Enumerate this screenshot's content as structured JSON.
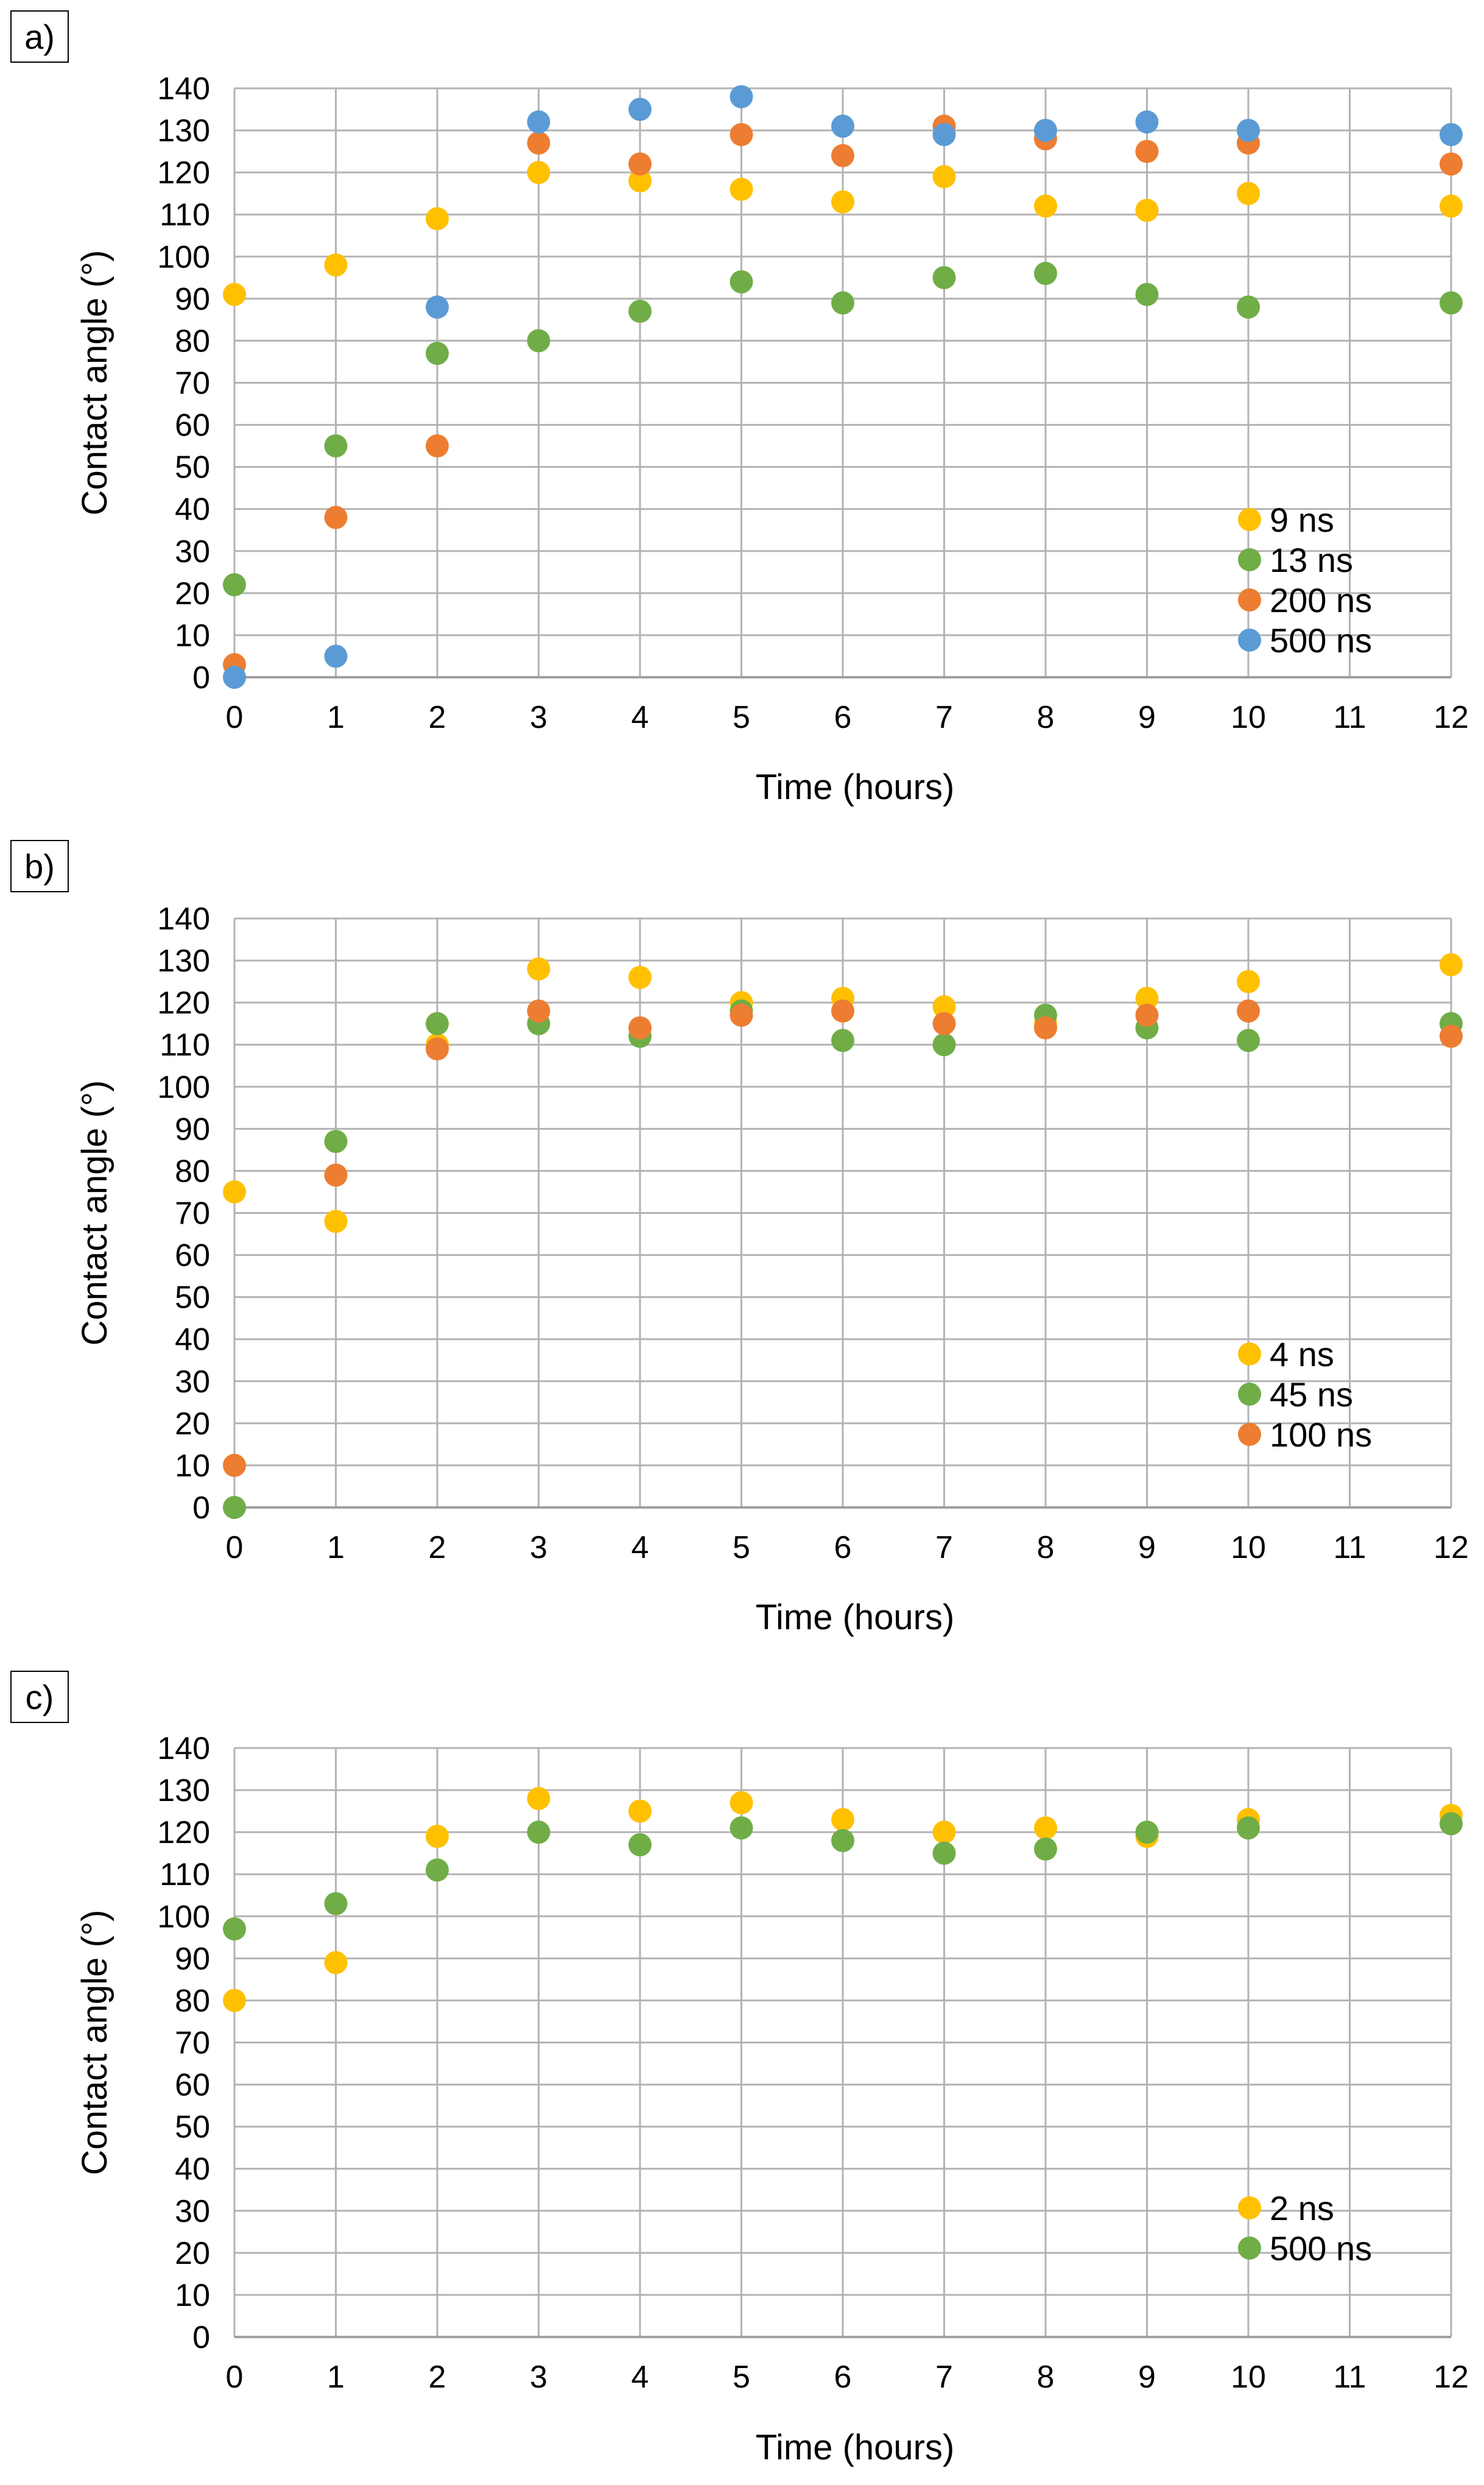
{
  "chart_data": [
    {
      "type": "scatter",
      "panel_label": "a)",
      "xlabel": "Time (hours)",
      "ylabel": "Contact angle (°)",
      "xlim": [
        0,
        12
      ],
      "ylim": [
        0,
        140
      ],
      "x_ticks": [
        0,
        1,
        2,
        3,
        4,
        5,
        6,
        7,
        8,
        9,
        10,
        11,
        12
      ],
      "y_ticks": [
        0,
        10,
        20,
        30,
        40,
        50,
        60,
        70,
        80,
        90,
        100,
        110,
        120,
        130,
        140
      ],
      "grid": true,
      "legend_position": "bottom-right",
      "series": [
        {
          "name": "9 ns",
          "color": "#FFC000",
          "x": [
            0,
            1,
            2,
            3,
            4,
            5,
            6,
            7,
            8,
            9,
            10,
            12
          ],
          "y": [
            91,
            98,
            109,
            120,
            118,
            116,
            113,
            119,
            112,
            111,
            115,
            112
          ]
        },
        {
          "name": "13 ns",
          "color": "#70AD47",
          "x": [
            0,
            1,
            2,
            3,
            4,
            5,
            6,
            7,
            8,
            9,
            10,
            12
          ],
          "y": [
            22,
            55,
            77,
            80,
            87,
            94,
            89,
            95,
            96,
            91,
            88,
            89
          ]
        },
        {
          "name": "200 ns",
          "color": "#ED7D31",
          "x": [
            0,
            1,
            2,
            3,
            4,
            5,
            6,
            7,
            8,
            9,
            10,
            12
          ],
          "y": [
            3,
            38,
            55,
            127,
            122,
            129,
            124,
            131,
            128,
            125,
            127,
            122
          ]
        },
        {
          "name": "500 ns",
          "color": "#5B9BD5",
          "x": [
            0,
            1,
            2,
            3,
            4,
            5,
            6,
            7,
            8,
            9,
            10,
            12
          ],
          "y": [
            0,
            5,
            88,
            132,
            135,
            138,
            131,
            129,
            130,
            132,
            130,
            129
          ]
        }
      ]
    },
    {
      "type": "scatter",
      "panel_label": "b)",
      "xlabel": "Time (hours)",
      "ylabel": "Contact angle (°)",
      "xlim": [
        0,
        12
      ],
      "ylim": [
        0,
        140
      ],
      "x_ticks": [
        0,
        1,
        2,
        3,
        4,
        5,
        6,
        7,
        8,
        9,
        10,
        11,
        12
      ],
      "y_ticks": [
        0,
        10,
        20,
        30,
        40,
        50,
        60,
        70,
        80,
        90,
        100,
        110,
        120,
        130,
        140
      ],
      "grid": true,
      "legend_position": "bottom-right",
      "series": [
        {
          "name": "4 ns",
          "color": "#FFC000",
          "x": [
            0,
            1,
            2,
            3,
            4,
            5,
            6,
            7,
            8,
            9,
            10,
            12
          ],
          "y": [
            75,
            68,
            110,
            128,
            126,
            120,
            121,
            119,
            115,
            121,
            125,
            129
          ]
        },
        {
          "name": "45 ns",
          "color": "#70AD47",
          "x": [
            0,
            1,
            2,
            3,
            4,
            5,
            6,
            7,
            8,
            9,
            10,
            12
          ],
          "y": [
            0,
            87,
            115,
            115,
            112,
            118,
            111,
            110,
            117,
            114,
            111,
            115
          ]
        },
        {
          "name": "100 ns",
          "color": "#ED7D31",
          "x": [
            0,
            1,
            2,
            3,
            4,
            5,
            6,
            7,
            8,
            9,
            10,
            12
          ],
          "y": [
            10,
            79,
            109,
            118,
            114,
            117,
            118,
            115,
            114,
            117,
            118,
            112
          ]
        }
      ]
    },
    {
      "type": "scatter",
      "panel_label": "c)",
      "xlabel": "Time (hours)",
      "ylabel": "Contact angle (°)",
      "xlim": [
        0,
        12
      ],
      "ylim": [
        0,
        140
      ],
      "x_ticks": [
        0,
        1,
        2,
        3,
        4,
        5,
        6,
        7,
        8,
        9,
        10,
        11,
        12
      ],
      "y_ticks": [
        0,
        10,
        20,
        30,
        40,
        50,
        60,
        70,
        80,
        90,
        100,
        110,
        120,
        130,
        140
      ],
      "grid": true,
      "legend_position": "bottom-right",
      "series": [
        {
          "name": "2 ns",
          "color": "#FFC000",
          "x": [
            0,
            1,
            2,
            3,
            4,
            5,
            6,
            7,
            8,
            9,
            10,
            12
          ],
          "y": [
            80,
            89,
            119,
            128,
            125,
            127,
            123,
            120,
            121,
            119,
            123,
            124
          ]
        },
        {
          "name": "500 ns",
          "color": "#70AD47",
          "x": [
            0,
            1,
            2,
            3,
            4,
            5,
            6,
            7,
            8,
            9,
            10,
            12
          ],
          "y": [
            97,
            103,
            111,
            120,
            117,
            121,
            118,
            115,
            116,
            120,
            121,
            122
          ]
        }
      ]
    }
  ]
}
